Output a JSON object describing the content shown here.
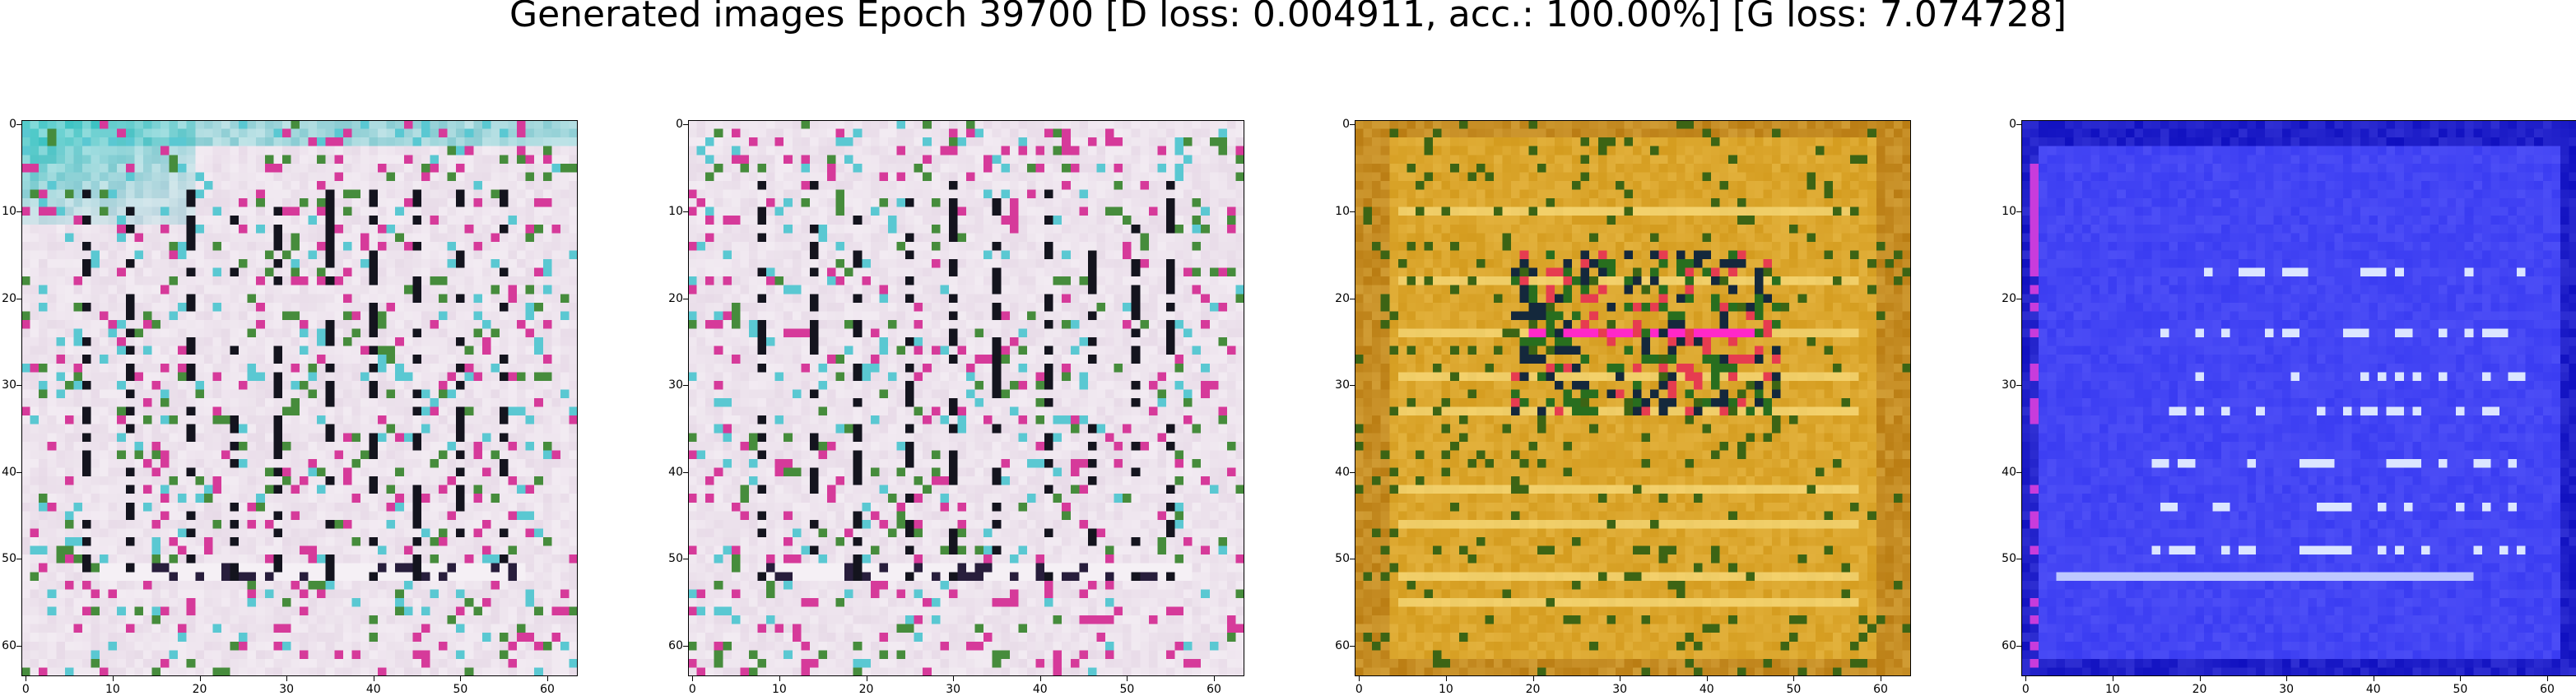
{
  "title": "Generated images Epoch 39700 [D loss: 0.004911, acc.: 100.00%] [G loss: 7.074728]",
  "panels": [
    {
      "name": "generated-image-1",
      "palette": "pastel-teal"
    },
    {
      "name": "generated-image-2",
      "palette": "pastel-pink"
    },
    {
      "name": "generated-image-3",
      "palette": "gold"
    },
    {
      "name": "generated-image-4",
      "palette": "blue"
    }
  ],
  "x_ticks": [
    "0",
    "10",
    "20",
    "30",
    "40",
    "50",
    "60"
  ],
  "y_ticks": [
    "0",
    "10",
    "20",
    "30",
    "40",
    "50",
    "60"
  ],
  "colors": {
    "pastel_base": "#e6d8e6",
    "teal": "#1ab8b8",
    "pink": "#d63a9a",
    "gold": "#d39a1c",
    "gold_border": "#b87a10",
    "blue": "#3a3cf2",
    "blue_dark": "#1010c0"
  }
}
